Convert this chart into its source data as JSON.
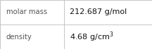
{
  "rows": [
    {
      "label": "molar mass",
      "value": "212.687 g/mol"
    },
    {
      "label": "density",
      "value": "4.68 g/cm³"
    }
  ],
  "bg_color": "#ffffff",
  "border_color": "#bbbbbb",
  "label_color": "#555555",
  "value_color": "#111111",
  "label_fontsize": 7.2,
  "value_fontsize": 8.0,
  "col_split": 0.42,
  "figsize": [
    2.16,
    0.7
  ],
  "dpi": 100
}
